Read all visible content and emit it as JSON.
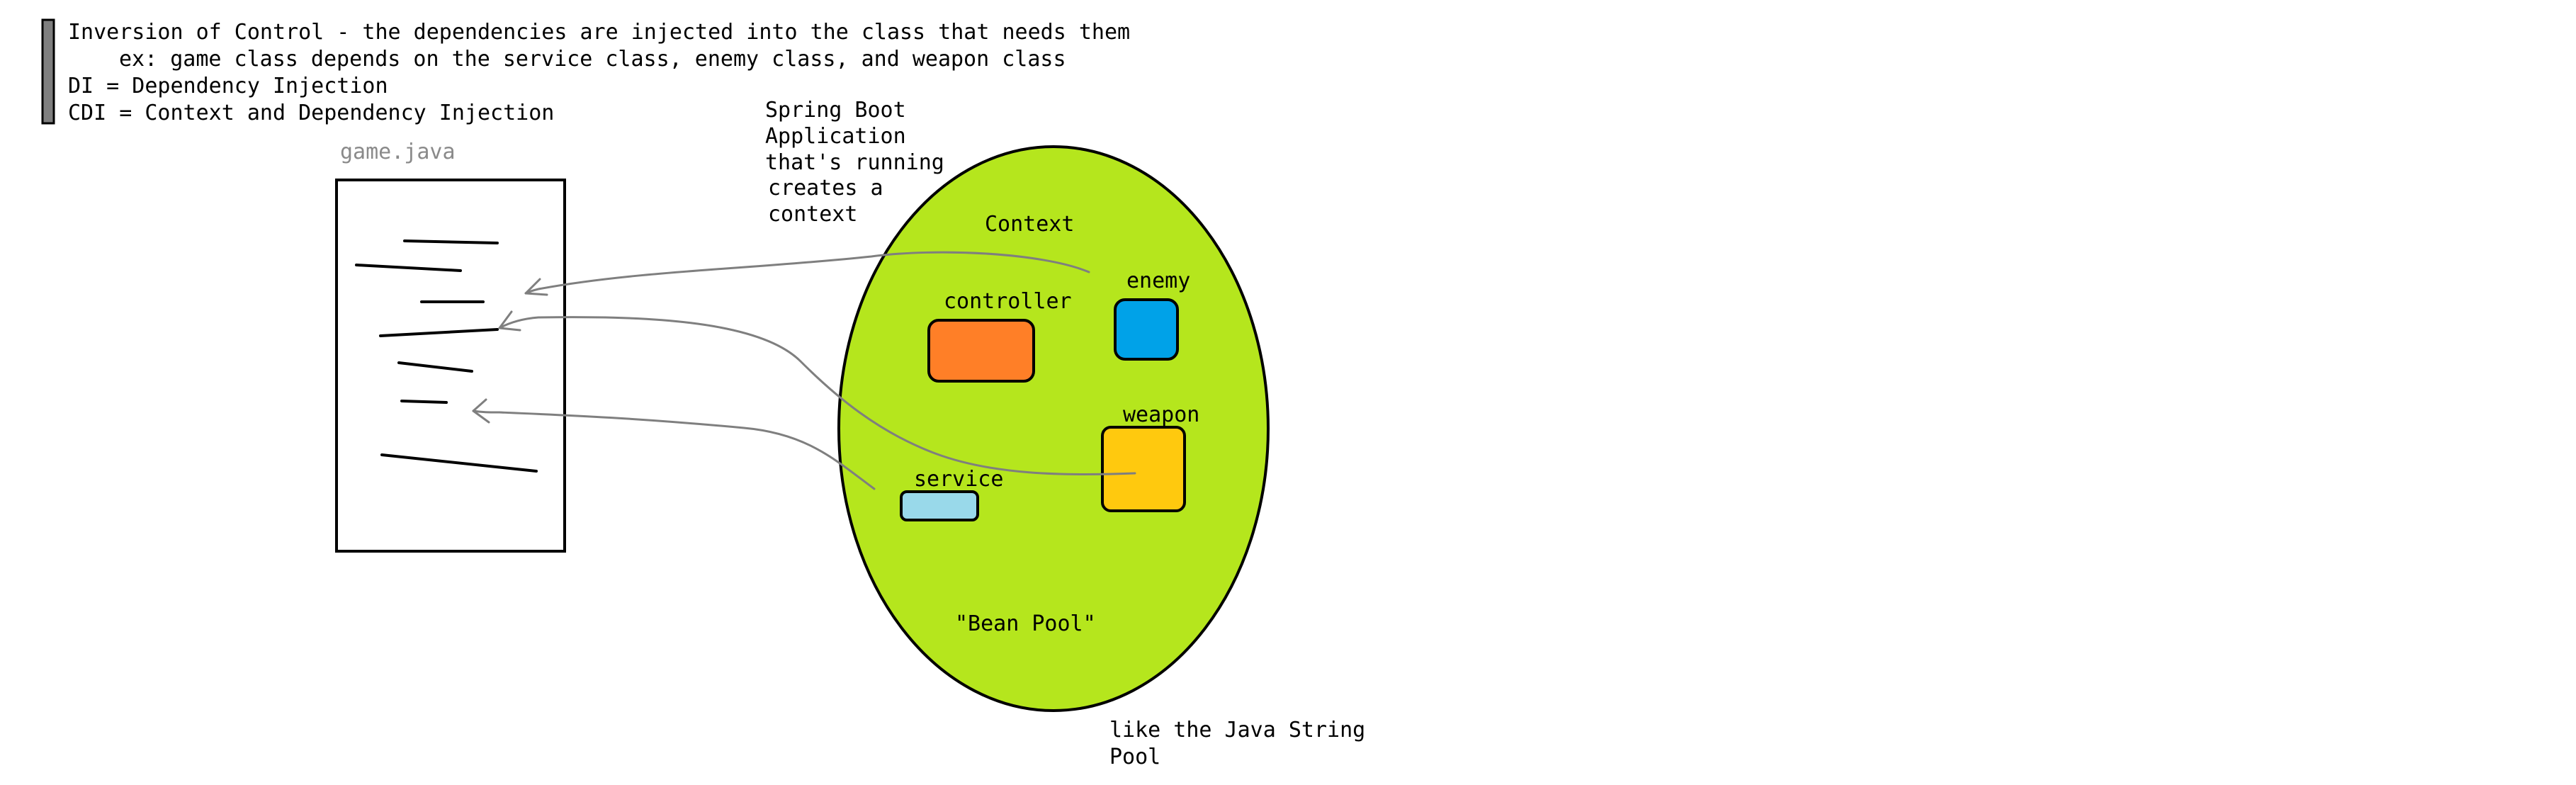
{
  "notes": {
    "line1": "Inversion of Control - the dependencies are injected into the class that needs them",
    "line2": "ex: game class depends on the service class, enemy class, and weapon class",
    "line3": "DI = Dependency Injection",
    "line4": "CDI = Context and Dependency Injection"
  },
  "file": {
    "name": "game.java"
  },
  "spring_note": {
    "line1": "Spring Boot",
    "line2": "Application",
    "line3": "that's running",
    "line4": "creates a",
    "line5": "context"
  },
  "context": {
    "title": "Context",
    "pool_label": "\"Bean Pool\"",
    "beans": {
      "controller": "controller",
      "enemy": "enemy",
      "weapon": "weapon",
      "service": "service"
    }
  },
  "pool_note": {
    "line1": "like the Java String",
    "line2": "Pool"
  },
  "colors": {
    "context_fill": "#b5e61d",
    "controller": "#ff7f27",
    "enemy": "#00a2e8",
    "weapon": "#ffc90e",
    "service": "#99d9ea",
    "arrow": "#7f7f7f",
    "note_bar": "#7f7f7f"
  }
}
